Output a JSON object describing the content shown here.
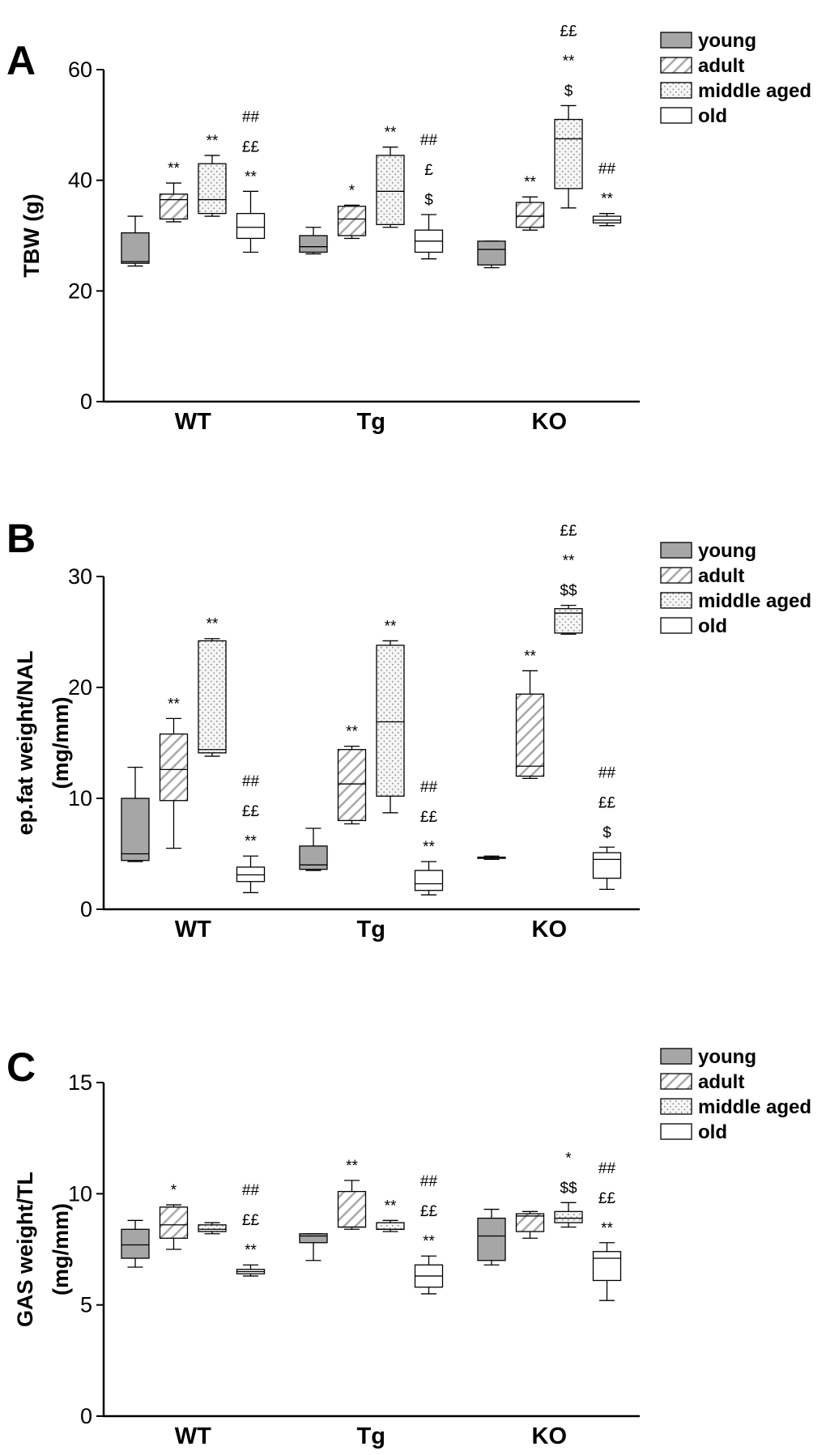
{
  "chart_data": [
    {
      "panel": "A",
      "type": "boxplot",
      "ylabel": "TBW (g)",
      "ylim": [
        0,
        60
      ],
      "yticks": [
        0,
        20,
        40,
        60
      ],
      "groups": [
        "WT",
        "Tg",
        "KO"
      ],
      "series_order": [
        "young",
        "adult",
        "middle aged",
        "old"
      ],
      "legend": [
        "young",
        "adult",
        "middle aged",
        "old"
      ],
      "boxes": [
        {
          "group": "WT",
          "series": "young",
          "min": 24.5,
          "q1": 25.0,
          "median": 25.3,
          "q3": 30.5,
          "max": 33.5,
          "annotations": []
        },
        {
          "group": "WT",
          "series": "adult",
          "min": 32.5,
          "q1": 33.0,
          "median": 36.5,
          "q3": 37.5,
          "max": 39.5,
          "annotations": [
            "**"
          ]
        },
        {
          "group": "WT",
          "series": "middle aged",
          "min": 33.5,
          "q1": 34.0,
          "median": 36.5,
          "q3": 43.0,
          "max": 44.5,
          "annotations": [
            "**"
          ]
        },
        {
          "group": "WT",
          "series": "old",
          "min": 27.0,
          "q1": 29.5,
          "median": 31.5,
          "q3": 34.0,
          "max": 38.0,
          "annotations": [
            "**",
            "££",
            "##"
          ]
        },
        {
          "group": "Tg",
          "series": "young",
          "min": 26.7,
          "q1": 27.0,
          "median": 28.0,
          "q3": 30.0,
          "max": 31.5,
          "annotations": []
        },
        {
          "group": "Tg",
          "series": "adult",
          "min": 29.5,
          "q1": 30.0,
          "median": 33.0,
          "q3": 35.3,
          "max": 35.5,
          "annotations": [
            "*"
          ]
        },
        {
          "group": "Tg",
          "series": "middle aged",
          "min": 31.5,
          "q1": 32.0,
          "median": 38.0,
          "q3": 44.5,
          "max": 46.0,
          "annotations": [
            "**"
          ]
        },
        {
          "group": "Tg",
          "series": "old",
          "min": 25.8,
          "q1": 27.0,
          "median": 29.0,
          "q3": 31.0,
          "max": 33.8,
          "annotations": [
            "$",
            "£",
            "##"
          ]
        },
        {
          "group": "KO",
          "series": "young",
          "min": 24.2,
          "q1": 24.7,
          "median": 27.5,
          "q3": 29.0,
          "max": 29.0,
          "annotations": []
        },
        {
          "group": "KO",
          "series": "adult",
          "min": 31.0,
          "q1": 31.5,
          "median": 33.5,
          "q3": 36.0,
          "max": 37.0,
          "annotations": [
            "**"
          ]
        },
        {
          "group": "KO",
          "series": "middle aged",
          "min": 35.0,
          "q1": 38.5,
          "median": 47.5,
          "q3": 51.0,
          "max": 53.5,
          "annotations": [
            "$",
            "**",
            "££"
          ]
        },
        {
          "group": "KO",
          "series": "old",
          "min": 31.8,
          "q1": 32.3,
          "median": 32.8,
          "q3": 33.5,
          "max": 34.0,
          "annotations": [
            "**",
            "##"
          ]
        }
      ]
    },
    {
      "panel": "B",
      "type": "boxplot",
      "ylabel": "ep.fat weight/NAL (mg/mm)",
      "ylabel_lines": [
        "ep.fat weight/NAL",
        "(mg/mm)"
      ],
      "ylim": [
        0,
        30
      ],
      "yticks": [
        0,
        10,
        20,
        30
      ],
      "groups": [
        "WT",
        "Tg",
        "KO"
      ],
      "series_order": [
        "young",
        "adult",
        "middle aged",
        "old"
      ],
      "legend": [
        "young",
        "adult",
        "middle aged",
        "old"
      ],
      "boxes": [
        {
          "group": "WT",
          "series": "young",
          "min": 4.3,
          "q1": 4.4,
          "median": 5.0,
          "q3": 10.0,
          "max": 12.8,
          "annotations": []
        },
        {
          "group": "WT",
          "series": "adult",
          "min": 5.5,
          "q1": 9.8,
          "median": 12.6,
          "q3": 15.8,
          "max": 17.2,
          "annotations": [
            "**"
          ]
        },
        {
          "group": "WT",
          "series": "middle aged",
          "min": 13.8,
          "q1": 14.1,
          "median": 14.4,
          "q3": 24.2,
          "max": 24.4,
          "annotations": [
            "**"
          ]
        },
        {
          "group": "WT",
          "series": "old",
          "min": 1.5,
          "q1": 2.5,
          "median": 3.1,
          "q3": 3.8,
          "max": 4.8,
          "annotations": [
            "**",
            "££",
            "##"
          ]
        },
        {
          "group": "Tg",
          "series": "young",
          "min": 3.5,
          "q1": 3.6,
          "median": 4.0,
          "q3": 5.7,
          "max": 7.3,
          "annotations": []
        },
        {
          "group": "Tg",
          "series": "adult",
          "min": 7.7,
          "q1": 8.0,
          "median": 11.3,
          "q3": 14.4,
          "max": 14.7,
          "annotations": [
            "**"
          ]
        },
        {
          "group": "Tg",
          "series": "middle aged",
          "min": 8.7,
          "q1": 10.2,
          "median": 16.9,
          "q3": 23.8,
          "max": 24.2,
          "annotations": [
            "**"
          ]
        },
        {
          "group": "Tg",
          "series": "old",
          "min": 1.3,
          "q1": 1.7,
          "median": 2.3,
          "q3": 3.5,
          "max": 4.3,
          "annotations": [
            "**",
            "££",
            "##"
          ]
        },
        {
          "group": "KO",
          "series": "young",
          "min": 4.5,
          "q1": 4.6,
          "median": 4.7,
          "q3": 4.7,
          "max": 4.8,
          "annotations": []
        },
        {
          "group": "KO",
          "series": "adult",
          "min": 11.8,
          "q1": 12.0,
          "median": 12.9,
          "q3": 19.4,
          "max": 21.5,
          "annotations": [
            "**"
          ]
        },
        {
          "group": "KO",
          "series": "middle aged",
          "min": 24.8,
          "q1": 24.9,
          "median": 26.7,
          "q3": 27.1,
          "max": 27.4,
          "annotations": [
            "$$",
            "**",
            "££"
          ]
        },
        {
          "group": "KO",
          "series": "old",
          "min": 1.8,
          "q1": 2.8,
          "median": 4.5,
          "q3": 5.1,
          "max": 5.6,
          "annotations": [
            "$",
            "££",
            "##"
          ]
        }
      ]
    },
    {
      "panel": "C",
      "type": "boxplot",
      "ylabel": "GAS weight/TL (mg/mm)",
      "ylabel_lines": [
        "GAS weight/TL",
        "(mg/mm)"
      ],
      "ylim": [
        0,
        15
      ],
      "yticks": [
        0,
        5,
        10,
        15
      ],
      "groups": [
        "WT",
        "Tg",
        "KO"
      ],
      "series_order": [
        "young",
        "adult",
        "middle aged",
        "old"
      ],
      "legend": [
        "young",
        "adult",
        "middle aged",
        "old"
      ],
      "boxes": [
        {
          "group": "WT",
          "series": "young",
          "min": 6.7,
          "q1": 7.1,
          "median": 7.7,
          "q3": 8.4,
          "max": 8.8,
          "annotations": []
        },
        {
          "group": "WT",
          "series": "adult",
          "min": 7.5,
          "q1": 8.0,
          "median": 8.6,
          "q3": 9.4,
          "max": 9.5,
          "annotations": [
            "*"
          ]
        },
        {
          "group": "WT",
          "series": "middle aged",
          "min": 8.2,
          "q1": 8.3,
          "median": 8.4,
          "q3": 8.6,
          "max": 8.7,
          "annotations": []
        },
        {
          "group": "WT",
          "series": "old",
          "min": 6.3,
          "q1": 6.4,
          "median": 6.5,
          "q3": 6.6,
          "max": 6.8,
          "annotations": [
            "**",
            "££",
            "##"
          ]
        },
        {
          "group": "Tg",
          "series": "young",
          "min": 7.0,
          "q1": 7.8,
          "median": 8.1,
          "q3": 8.2,
          "max": 8.2,
          "annotations": []
        },
        {
          "group": "Tg",
          "series": "adult",
          "min": 8.4,
          "q1": 8.5,
          "median": 8.5,
          "q3": 10.1,
          "max": 10.6,
          "annotations": [
            "**"
          ]
        },
        {
          "group": "Tg",
          "series": "middle aged",
          "min": 8.3,
          "q1": 8.4,
          "median": 8.4,
          "q3": 8.7,
          "max": 8.8,
          "annotations": [
            "**"
          ]
        },
        {
          "group": "Tg",
          "series": "old",
          "min": 5.5,
          "q1": 5.8,
          "median": 6.3,
          "q3": 6.8,
          "max": 7.2,
          "annotations": [
            "**",
            "££",
            "##"
          ]
        },
        {
          "group": "KO",
          "series": "young",
          "min": 6.8,
          "q1": 7.0,
          "median": 8.1,
          "q3": 8.9,
          "max": 9.3,
          "annotations": []
        },
        {
          "group": "KO",
          "series": "adult",
          "min": 8.0,
          "q1": 8.3,
          "median": 9.0,
          "q3": 9.1,
          "max": 9.2,
          "annotations": []
        },
        {
          "group": "KO",
          "series": "middle aged",
          "min": 8.5,
          "q1": 8.7,
          "median": 8.9,
          "q3": 9.2,
          "max": 9.6,
          "annotations": [
            "$$",
            "*"
          ]
        },
        {
          "group": "KO",
          "series": "old",
          "min": 5.2,
          "q1": 6.1,
          "median": 7.1,
          "q3": 7.4,
          "max": 7.8,
          "annotations": [
            "**",
            "££",
            "##"
          ]
        }
      ]
    }
  ]
}
